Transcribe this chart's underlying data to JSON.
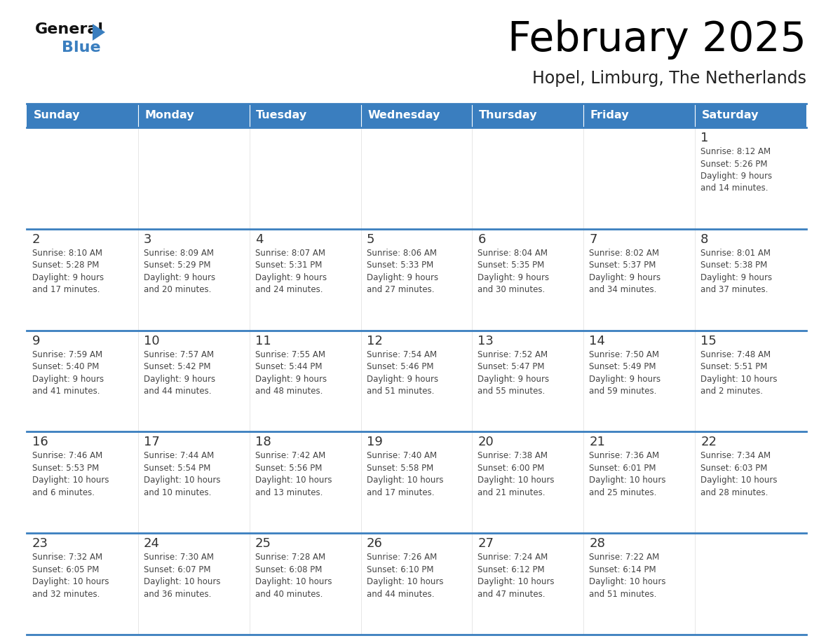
{
  "title": "February 2025",
  "subtitle": "Hopel, Limburg, The Netherlands",
  "header_bg": "#3a7ebf",
  "header_text": "#ffffff",
  "cell_bg": "#ffffff",
  "day_number_color": "#333333",
  "info_text_color": "#444444",
  "line_color": "#3a7ebf",
  "days_of_week": [
    "Sunday",
    "Monday",
    "Tuesday",
    "Wednesday",
    "Thursday",
    "Friday",
    "Saturday"
  ],
  "weeks": [
    [
      {
        "day": null,
        "info": null
      },
      {
        "day": null,
        "info": null
      },
      {
        "day": null,
        "info": null
      },
      {
        "day": null,
        "info": null
      },
      {
        "day": null,
        "info": null
      },
      {
        "day": null,
        "info": null
      },
      {
        "day": 1,
        "info": "Sunrise: 8:12 AM\nSunset: 5:26 PM\nDaylight: 9 hours\nand 14 minutes."
      }
    ],
    [
      {
        "day": 2,
        "info": "Sunrise: 8:10 AM\nSunset: 5:28 PM\nDaylight: 9 hours\nand 17 minutes."
      },
      {
        "day": 3,
        "info": "Sunrise: 8:09 AM\nSunset: 5:29 PM\nDaylight: 9 hours\nand 20 minutes."
      },
      {
        "day": 4,
        "info": "Sunrise: 8:07 AM\nSunset: 5:31 PM\nDaylight: 9 hours\nand 24 minutes."
      },
      {
        "day": 5,
        "info": "Sunrise: 8:06 AM\nSunset: 5:33 PM\nDaylight: 9 hours\nand 27 minutes."
      },
      {
        "day": 6,
        "info": "Sunrise: 8:04 AM\nSunset: 5:35 PM\nDaylight: 9 hours\nand 30 minutes."
      },
      {
        "day": 7,
        "info": "Sunrise: 8:02 AM\nSunset: 5:37 PM\nDaylight: 9 hours\nand 34 minutes."
      },
      {
        "day": 8,
        "info": "Sunrise: 8:01 AM\nSunset: 5:38 PM\nDaylight: 9 hours\nand 37 minutes."
      }
    ],
    [
      {
        "day": 9,
        "info": "Sunrise: 7:59 AM\nSunset: 5:40 PM\nDaylight: 9 hours\nand 41 minutes."
      },
      {
        "day": 10,
        "info": "Sunrise: 7:57 AM\nSunset: 5:42 PM\nDaylight: 9 hours\nand 44 minutes."
      },
      {
        "day": 11,
        "info": "Sunrise: 7:55 AM\nSunset: 5:44 PM\nDaylight: 9 hours\nand 48 minutes."
      },
      {
        "day": 12,
        "info": "Sunrise: 7:54 AM\nSunset: 5:46 PM\nDaylight: 9 hours\nand 51 minutes."
      },
      {
        "day": 13,
        "info": "Sunrise: 7:52 AM\nSunset: 5:47 PM\nDaylight: 9 hours\nand 55 minutes."
      },
      {
        "day": 14,
        "info": "Sunrise: 7:50 AM\nSunset: 5:49 PM\nDaylight: 9 hours\nand 59 minutes."
      },
      {
        "day": 15,
        "info": "Sunrise: 7:48 AM\nSunset: 5:51 PM\nDaylight: 10 hours\nand 2 minutes."
      }
    ],
    [
      {
        "day": 16,
        "info": "Sunrise: 7:46 AM\nSunset: 5:53 PM\nDaylight: 10 hours\nand 6 minutes."
      },
      {
        "day": 17,
        "info": "Sunrise: 7:44 AM\nSunset: 5:54 PM\nDaylight: 10 hours\nand 10 minutes."
      },
      {
        "day": 18,
        "info": "Sunrise: 7:42 AM\nSunset: 5:56 PM\nDaylight: 10 hours\nand 13 minutes."
      },
      {
        "day": 19,
        "info": "Sunrise: 7:40 AM\nSunset: 5:58 PM\nDaylight: 10 hours\nand 17 minutes."
      },
      {
        "day": 20,
        "info": "Sunrise: 7:38 AM\nSunset: 6:00 PM\nDaylight: 10 hours\nand 21 minutes."
      },
      {
        "day": 21,
        "info": "Sunrise: 7:36 AM\nSunset: 6:01 PM\nDaylight: 10 hours\nand 25 minutes."
      },
      {
        "day": 22,
        "info": "Sunrise: 7:34 AM\nSunset: 6:03 PM\nDaylight: 10 hours\nand 28 minutes."
      }
    ],
    [
      {
        "day": 23,
        "info": "Sunrise: 7:32 AM\nSunset: 6:05 PM\nDaylight: 10 hours\nand 32 minutes."
      },
      {
        "day": 24,
        "info": "Sunrise: 7:30 AM\nSunset: 6:07 PM\nDaylight: 10 hours\nand 36 minutes."
      },
      {
        "day": 25,
        "info": "Sunrise: 7:28 AM\nSunset: 6:08 PM\nDaylight: 10 hours\nand 40 minutes."
      },
      {
        "day": 26,
        "info": "Sunrise: 7:26 AM\nSunset: 6:10 PM\nDaylight: 10 hours\nand 44 minutes."
      },
      {
        "day": 27,
        "info": "Sunrise: 7:24 AM\nSunset: 6:12 PM\nDaylight: 10 hours\nand 47 minutes."
      },
      {
        "day": 28,
        "info": "Sunrise: 7:22 AM\nSunset: 6:14 PM\nDaylight: 10 hours\nand 51 minutes."
      },
      {
        "day": null,
        "info": null
      }
    ]
  ],
  "logo_color_general": "#111111",
  "logo_color_blue": "#3a7ebf",
  "logo_triangle_color": "#3a7ebf",
  "fig_width": 11.88,
  "fig_height": 9.18,
  "dpi": 100
}
